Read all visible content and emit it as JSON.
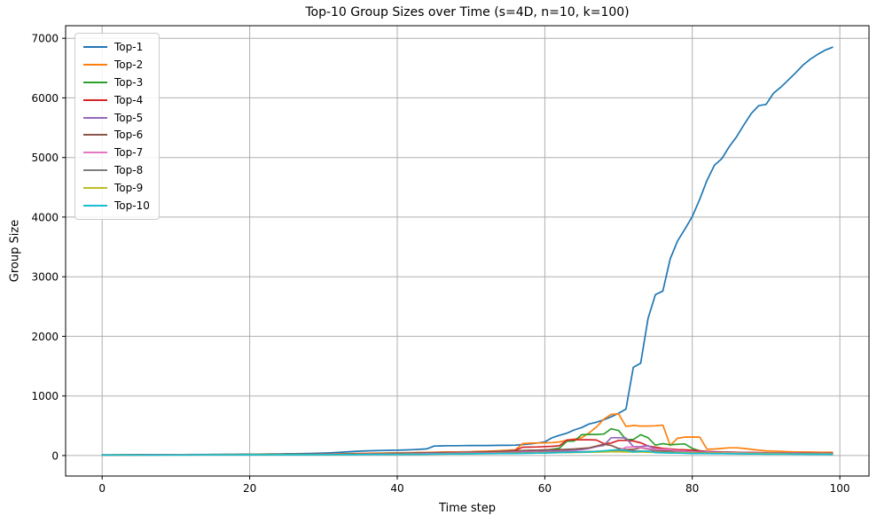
{
  "colors": {
    "background": "#ffffff",
    "grid": "#b0b0b0",
    "spine": "#000000",
    "legend_border": "#cccccc"
  },
  "chart_data": {
    "type": "line",
    "title": "Top-10 Group Sizes over Time (s=4D, n=10, k=100)",
    "xlabel": "Time step",
    "ylabel": "Group Size",
    "xlim": [
      -4.95,
      103.95
    ],
    "ylim": [
      -343,
      7211
    ],
    "xticks": [
      0,
      20,
      40,
      60,
      80,
      100
    ],
    "yticks": [
      0,
      1000,
      2000,
      3000,
      4000,
      5000,
      6000,
      7000
    ],
    "grid": true,
    "legend_position": "upper-left",
    "x": [
      0,
      1,
      2,
      3,
      4,
      5,
      6,
      7,
      8,
      9,
      10,
      11,
      12,
      13,
      14,
      15,
      16,
      17,
      18,
      19,
      20,
      21,
      22,
      23,
      24,
      25,
      26,
      27,
      28,
      29,
      30,
      31,
      32,
      33,
      34,
      35,
      36,
      37,
      38,
      39,
      40,
      41,
      42,
      43,
      44,
      45,
      46,
      47,
      48,
      49,
      50,
      51,
      52,
      53,
      54,
      55,
      56,
      57,
      58,
      59,
      60,
      61,
      62,
      63,
      64,
      65,
      66,
      67,
      68,
      69,
      70,
      71,
      72,
      73,
      74,
      75,
      76,
      77,
      78,
      79,
      80,
      81,
      82,
      83,
      84,
      85,
      86,
      87,
      88,
      89,
      90,
      91,
      92,
      93,
      94,
      95,
      96,
      97,
      98,
      99
    ],
    "series": [
      {
        "name": "Top-1",
        "color": "#1f77b4",
        "y": [
          12,
          12,
          13,
          13,
          14,
          14,
          15,
          15,
          16,
          16,
          17,
          17,
          18,
          18,
          19,
          20,
          20,
          21,
          22,
          23,
          24,
          25,
          26,
          27,
          28,
          30,
          31,
          33,
          35,
          38,
          42,
          46,
          52,
          60,
          68,
          75,
          80,
          83,
          86,
          88,
          90,
          94,
          98,
          104,
          112,
          160,
          163,
          165,
          166,
          167,
          168,
          168,
          169,
          170,
          171,
          172,
          174,
          185,
          195,
          210,
          230,
          300,
          340,
          375,
          430,
          470,
          530,
          560,
          600,
          650,
          710,
          780,
          1480,
          1550,
          2300,
          2700,
          2760,
          3300,
          3600,
          3800,
          4010,
          4300,
          4620,
          4870,
          4980,
          5180,
          5350,
          5550,
          5740,
          5870,
          5890,
          6080,
          6180,
          6300,
          6420,
          6550,
          6650,
          6730,
          6800,
          6850
        ]
      },
      {
        "name": "Top-2",
        "color": "#ff7f0e",
        "y": [
          11,
          11,
          12,
          12,
          13,
          13,
          13,
          14,
          14,
          15,
          15,
          15,
          16,
          16,
          17,
          17,
          18,
          18,
          19,
          19,
          20,
          20,
          21,
          21,
          22,
          22,
          23,
          24,
          25,
          26,
          27,
          28,
          30,
          32,
          34,
          36,
          38,
          40,
          42,
          44,
          46,
          48,
          50,
          52,
          54,
          56,
          58,
          60,
          62,
          64,
          66,
          70,
          74,
          78,
          84,
          90,
          96,
          200,
          208,
          212,
          215,
          218,
          230,
          258,
          275,
          300,
          380,
          480,
          610,
          690,
          700,
          490,
          505,
          495,
          495,
          500,
          510,
          170,
          290,
          310,
          312,
          310,
          104,
          110,
          120,
          130,
          130,
          120,
          105,
          90,
          80,
          75,
          70,
          65,
          62,
          60,
          58,
          57,
          56,
          55
        ]
      },
      {
        "name": "Top-3",
        "color": "#2ca02c",
        "y": [
          10,
          10,
          11,
          11,
          12,
          12,
          12,
          13,
          13,
          13,
          14,
          14,
          14,
          15,
          15,
          15,
          16,
          16,
          17,
          17,
          18,
          18,
          19,
          19,
          20,
          20,
          21,
          21,
          22,
          22,
          23,
          24,
          25,
          26,
          27,
          28,
          30,
          32,
          34,
          36,
          38,
          40,
          42,
          44,
          46,
          48,
          50,
          52,
          54,
          56,
          58,
          60,
          62,
          65,
          68,
          72,
          76,
          80,
          85,
          88,
          92,
          105,
          125,
          240,
          245,
          350,
          355,
          355,
          360,
          450,
          420,
          270,
          270,
          350,
          300,
          175,
          200,
          180,
          190,
          195,
          120,
          80,
          60,
          55,
          52,
          50,
          48,
          46,
          45,
          44,
          42,
          41,
          40,
          39,
          38,
          38,
          37,
          36,
          35,
          35
        ]
      },
      {
        "name": "Top-4",
        "color": "#d62728",
        "y": [
          10,
          10,
          10,
          11,
          11,
          11,
          12,
          12,
          12,
          13,
          13,
          13,
          14,
          14,
          14,
          15,
          15,
          15,
          16,
          16,
          16,
          17,
          17,
          18,
          18,
          19,
          19,
          20,
          20,
          21,
          22,
          23,
          24,
          25,
          26,
          27,
          28,
          30,
          32,
          34,
          36,
          38,
          40,
          43,
          46,
          48,
          50,
          52,
          53,
          54,
          55,
          58,
          62,
          66,
          70,
          75,
          90,
          140,
          142,
          144,
          150,
          155,
          165,
          260,
          265,
          265,
          265,
          260,
          200,
          210,
          255,
          255,
          245,
          215,
          160,
          140,
          120,
          110,
          100,
          95,
          90,
          80,
          70,
          65,
          60,
          58,
          56,
          54,
          52,
          50,
          48,
          47,
          46,
          45,
          44,
          43,
          42,
          41,
          40,
          40
        ]
      },
      {
        "name": "Top-5",
        "color": "#9467bd",
        "y": [
          10,
          10,
          10,
          10,
          11,
          11,
          11,
          12,
          12,
          12,
          13,
          13,
          13,
          14,
          14,
          14,
          15,
          15,
          15,
          16,
          16,
          16,
          17,
          17,
          18,
          18,
          19,
          19,
          20,
          20,
          21,
          22,
          23,
          24,
          25,
          26,
          27,
          28,
          30,
          32,
          34,
          36,
          38,
          40,
          42,
          44,
          46,
          48,
          50,
          52,
          54,
          56,
          58,
          60,
          62,
          64,
          66,
          68,
          69,
          70,
          70,
          75,
          80,
          85,
          90,
          100,
          120,
          150,
          170,
          300,
          300,
          295,
          150,
          150,
          165,
          110,
          90,
          80,
          75,
          70,
          65,
          62,
          60,
          58,
          56,
          54,
          52,
          50,
          48,
          46,
          44,
          43,
          42,
          41,
          40,
          39,
          38,
          37,
          36,
          35
        ]
      },
      {
        "name": "Top-6",
        "color": "#8c564b",
        "y": [
          10,
          10,
          10,
          10,
          10,
          11,
          11,
          11,
          11,
          12,
          12,
          12,
          12,
          13,
          13,
          13,
          13,
          14,
          14,
          14,
          15,
          15,
          15,
          16,
          16,
          16,
          17,
          17,
          18,
          18,
          19,
          20,
          21,
          22,
          23,
          24,
          25,
          26,
          27,
          28,
          30,
          32,
          34,
          36,
          38,
          40,
          42,
          44,
          46,
          48,
          50,
          55,
          60,
          65,
          70,
          75,
          80,
          85,
          88,
          90,
          95,
          100,
          100,
          105,
          110,
          120,
          130,
          160,
          190,
          170,
          120,
          100,
          105,
          130,
          110,
          85,
          75,
          70,
          68,
          65,
          60,
          58,
          56,
          54,
          52,
          50,
          49,
          48,
          47,
          46,
          45,
          44,
          43,
          42,
          41,
          40,
          40,
          39,
          38,
          38
        ]
      },
      {
        "name": "Top-7",
        "color": "#e377c2",
        "y": [
          10,
          10,
          10,
          10,
          10,
          10,
          11,
          11,
          11,
          11,
          11,
          12,
          12,
          12,
          12,
          13,
          13,
          13,
          13,
          14,
          14,
          14,
          14,
          15,
          15,
          15,
          16,
          16,
          16,
          17,
          17,
          18,
          18,
          19,
          19,
          20,
          21,
          22,
          23,
          24,
          25,
          26,
          27,
          28,
          29,
          30,
          32,
          34,
          36,
          38,
          40,
          42,
          44,
          46,
          48,
          50,
          52,
          54,
          56,
          58,
          60,
          62,
          63,
          64,
          65,
          60,
          62,
          65,
          70,
          75,
          80,
          140,
          145,
          135,
          120,
          100,
          105,
          100,
          80,
          70,
          60,
          55,
          52,
          50,
          48,
          46,
          45,
          44,
          43,
          42,
          41,
          40,
          39,
          38,
          37,
          36,
          35,
          34,
          33,
          32
        ]
      },
      {
        "name": "Top-8",
        "color": "#7f7f7f",
        "y": [
          10,
          10,
          10,
          10,
          10,
          10,
          10,
          10,
          11,
          11,
          11,
          11,
          11,
          12,
          12,
          12,
          12,
          12,
          13,
          13,
          13,
          13,
          14,
          14,
          14,
          14,
          15,
          15,
          15,
          16,
          16,
          16,
          17,
          17,
          18,
          18,
          19,
          19,
          20,
          20,
          21,
          22,
          23,
          24,
          25,
          26,
          27,
          28,
          29,
          30,
          32,
          34,
          36,
          38,
          40,
          42,
          44,
          46,
          48,
          50,
          55,
          57,
          58,
          60,
          62,
          65,
          68,
          70,
          75,
          80,
          85,
          82,
          80,
          75,
          72,
          70,
          60,
          58,
          56,
          54,
          50,
          48,
          46,
          44,
          42,
          40,
          39,
          38,
          37,
          36,
          35,
          34,
          33,
          32,
          31,
          30,
          30,
          29,
          28,
          28
        ]
      },
      {
        "name": "Top-9",
        "color": "#bcbd22",
        "y": [
          9,
          9,
          9,
          10,
          10,
          10,
          10,
          10,
          10,
          10,
          11,
          11,
          11,
          11,
          11,
          12,
          12,
          12,
          12,
          12,
          13,
          13,
          13,
          13,
          14,
          14,
          14,
          14,
          15,
          15,
          15,
          16,
          16,
          17,
          17,
          18,
          18,
          19,
          19,
          20,
          20,
          21,
          22,
          23,
          24,
          25,
          26,
          27,
          28,
          29,
          30,
          31,
          32,
          33,
          34,
          36,
          38,
          40,
          42,
          44,
          45,
          47,
          48,
          50,
          52,
          54,
          55,
          58,
          60,
          63,
          65,
          60,
          60,
          58,
          55,
          52,
          50,
          48,
          46,
          45,
          42,
          41,
          40,
          39,
          38,
          37,
          36,
          35,
          34,
          33,
          32,
          31,
          30,
          29,
          28,
          28,
          27,
          26,
          26,
          25
        ]
      },
      {
        "name": "Top-10",
        "color": "#17becf",
        "y": [
          9,
          9,
          9,
          9,
          9,
          9,
          10,
          10,
          10,
          10,
          10,
          10,
          10,
          11,
          11,
          11,
          11,
          11,
          11,
          12,
          12,
          12,
          12,
          12,
          13,
          13,
          13,
          13,
          14,
          14,
          14,
          15,
          15,
          16,
          16,
          17,
          17,
          18,
          18,
          19,
          20,
          20,
          21,
          22,
          23,
          24,
          25,
          26,
          27,
          28,
          29,
          30,
          31,
          32,
          33,
          34,
          35,
          36,
          38,
          40,
          42,
          45,
          48,
          52,
          55,
          58,
          60,
          70,
          80,
          90,
          100,
          85,
          60,
          70,
          75,
          50,
          45,
          42,
          40,
          38,
          35,
          34,
          33,
          32,
          31,
          30,
          29,
          28,
          27,
          26,
          25,
          25,
          24,
          24,
          23,
          23,
          22,
          21,
          21,
          20
        ]
      }
    ]
  }
}
